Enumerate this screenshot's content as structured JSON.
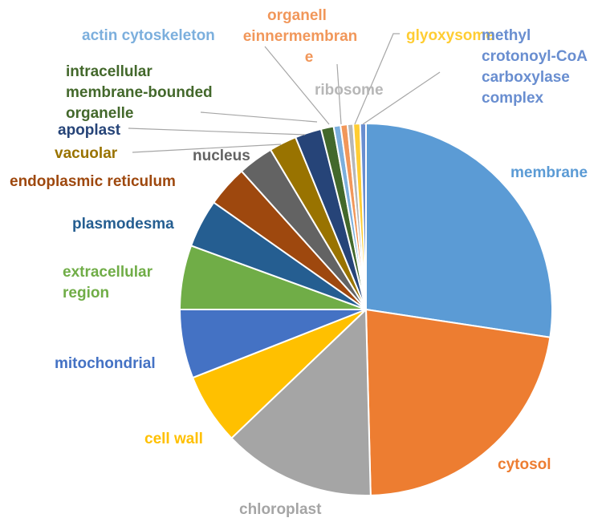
{
  "chart_data": {
    "type": "pie",
    "title": "",
    "legend": "none",
    "slices": [
      {
        "label": "membrane",
        "lines": [
          "membrane"
        ],
        "value": 27.5,
        "color": "#5B9BD5"
      },
      {
        "label": "cytosol",
        "lines": [
          "cytosol"
        ],
        "value": 22.3,
        "color": "#ED7D31"
      },
      {
        "label": "chloroplast",
        "lines": [
          "chloroplast"
        ],
        "value": 13.3,
        "color": "#A5A5A5"
      },
      {
        "label": "cell wall",
        "lines": [
          "cell wall"
        ],
        "value": 6.2,
        "color": "#FFC000"
      },
      {
        "label": "mitochondrial",
        "lines": [
          "mitochondrial"
        ],
        "value": 6.0,
        "color": "#4472C4"
      },
      {
        "label": "extracellular region",
        "lines": [
          "extracellular",
          "region"
        ],
        "value": 5.6,
        "color": "#70AD47"
      },
      {
        "label": "plasmodesma",
        "lines": [
          "plasmodesma"
        ],
        "value": 4.2,
        "color": "#255E91"
      },
      {
        "label": "endoplasmic reticulum",
        "lines": [
          "endoplasmic reticulum"
        ],
        "value": 3.6,
        "color": "#9E480E"
      },
      {
        "label": "nucleus",
        "lines": [
          "nucleus"
        ],
        "value": 3.1,
        "color": "#636363"
      },
      {
        "label": "vacuolar",
        "lines": [
          "vacuolar"
        ],
        "value": 2.4,
        "color": "#997300"
      },
      {
        "label": "apoplast",
        "lines": [
          "apoplast"
        ],
        "value": 2.3,
        "color": "#264478"
      },
      {
        "label": "intracellular membrane-bounded organelle",
        "lines": [
          "intracellular",
          "membrane-bounded",
          "organelle"
        ],
        "value": 1.1,
        "color": "#43682B"
      },
      {
        "label": "actin cytoskeleton",
        "lines": [
          "actin cytoskeleton"
        ],
        "value": 0.6,
        "color": "#7CAFDD"
      },
      {
        "label": "organelle inner membrane",
        "lines": [
          "organell",
          "einnermembran",
          "e"
        ],
        "value": 0.6,
        "color": "#F1975A"
      },
      {
        "label": "ribosome",
        "lines": [
          "ribosome"
        ],
        "value": 0.5,
        "color": "#B7B7B7"
      },
      {
        "label": "glyoxysome",
        "lines": [
          "glyoxysome"
        ],
        "value": 0.6,
        "color": "#FFCD33"
      },
      {
        "label": "methyl crotonoyl-CoA carboxylase complex",
        "lines": [
          "methyl",
          "crotonoyl-CoA",
          "carboxylase",
          "complex"
        ],
        "value": 0.5,
        "color": "#698ED0"
      }
    ]
  }
}
